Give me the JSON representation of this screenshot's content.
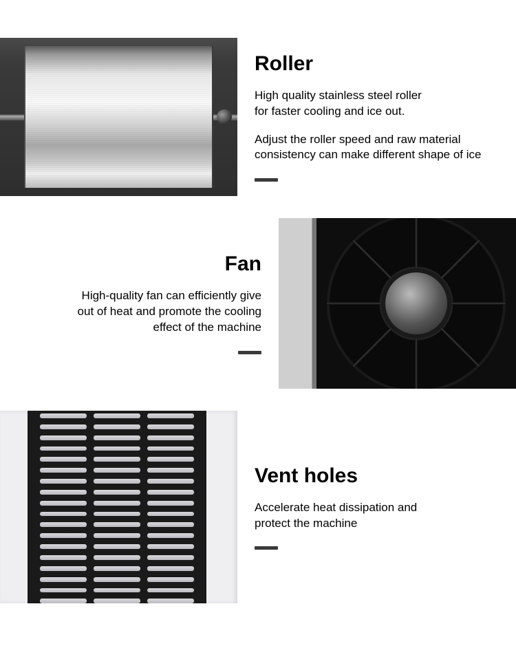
{
  "sections": [
    {
      "title": "Roller",
      "desc1": "High quality stainless steel roller\nfor faster cooling and ice out.",
      "desc2": "Adjust the roller speed and raw material\nconsistency can make different shape of ice"
    },
    {
      "title": "Fan",
      "desc1": "High-quality fan can efficiently give\nout of heat  and promote the cooling\neffect of the machine"
    },
    {
      "title": "Vent holes",
      "desc1": "Accelerate heat dissipation and\nprotect the machine"
    }
  ],
  "style": {
    "title_color": "#000000",
    "text_color": "#000000",
    "dash_color": "#3a3a3a",
    "title_fontsize": 30,
    "desc_fontsize": 17,
    "dash_width": 34,
    "dash_height": 5
  }
}
